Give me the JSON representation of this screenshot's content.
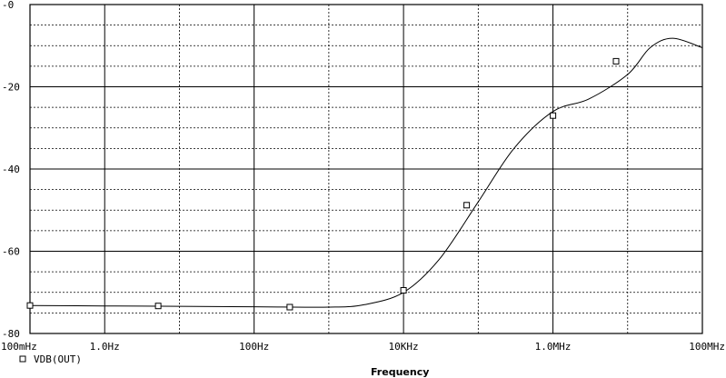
{
  "chart_data": {
    "type": "line",
    "title": "",
    "xlabel": "Frequency",
    "ylabel": "",
    "x_scale": "log",
    "x_ticks": [
      {
        "value": 0.1,
        "label": "100mHz"
      },
      {
        "value": 1,
        "label": "1.0Hz"
      },
      {
        "value": 100,
        "label": "100Hz"
      },
      {
        "value": 10000,
        "label": "10KHz"
      },
      {
        "value": 1000000,
        "label": "1.0MHz"
      },
      {
        "value": 100000000,
        "label": "100MHz"
      }
    ],
    "y_ticks": [
      {
        "value": 0,
        "label": "-0"
      },
      {
        "value": -20,
        "label": "-20"
      },
      {
        "value": -40,
        "label": "-40"
      },
      {
        "value": -60,
        "label": "-60"
      },
      {
        "value": -80,
        "label": "-80"
      }
    ],
    "xlim": [
      0.1,
      100000000
    ],
    "ylim": [
      -80,
      0
    ],
    "grid": true,
    "legend_position": "bottom-left",
    "series": [
      {
        "name": "VDB(OUT)",
        "marker": "square",
        "color": "#000000",
        "x": [
          0.1,
          1,
          10,
          100,
          1000,
          3000,
          10000,
          30000,
          100000,
          300000,
          1000000,
          3000000,
          10000000,
          20000000,
          40000000,
          100000000
        ],
        "y": [
          -73.2,
          -73.3,
          -73.4,
          -73.5,
          -73.6,
          -73.0,
          -70.0,
          -62.0,
          -48.0,
          -35.0,
          -26.0,
          -23.0,
          -17.0,
          -10.5,
          -8.2,
          -10.5
        ]
      }
    ],
    "markers": {
      "x": [
        0.1,
        5.2,
        300,
        10000,
        70000,
        1000000,
        7000000
      ],
      "y": [
        -73.2,
        -73.3,
        -73.6,
        -69.5,
        -48.8,
        -27.0,
        -13.8
      ]
    }
  }
}
